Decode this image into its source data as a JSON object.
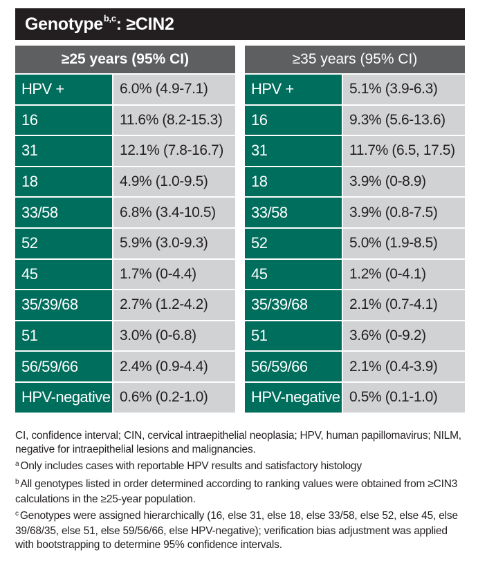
{
  "title": {
    "main": "Genotype",
    "superscript": "b,c",
    "suffix": ": ≥CIN2"
  },
  "columns": [
    {
      "header": "≥25 years (95% CI)",
      "rows": [
        {
          "genotype": "HPV +",
          "value": "6.0% (4.9-7.1)"
        },
        {
          "genotype": "16",
          "value": "11.6% (8.2-15.3)"
        },
        {
          "genotype": "31",
          "value": "12.1% (7.8-16.7)"
        },
        {
          "genotype": "18",
          "value": "4.9% (1.0-9.5)"
        },
        {
          "genotype": "33/58",
          "value": "6.8% (3.4-10.5)"
        },
        {
          "genotype": "52",
          "value": "5.9% (3.0-9.3)"
        },
        {
          "genotype": "45",
          "value": "1.7% (0-4.4)"
        },
        {
          "genotype": "35/39/68",
          "value": "2.7% (1.2-4.2)"
        },
        {
          "genotype": "51",
          "value": "3.0% (0-6.8)"
        },
        {
          "genotype": "56/59/66",
          "value": "2.4% (0.9-4.4)"
        },
        {
          "genotype": "HPV-negative",
          "value": "0.6% (0.2-1.0)"
        }
      ]
    },
    {
      "header": "≥35 years (95% CI)",
      "rows": [
        {
          "genotype": "HPV +",
          "value": "5.1% (3.9-6.3)"
        },
        {
          "genotype": "16",
          "value": "9.3% (5.6-13.6)"
        },
        {
          "genotype": "31",
          "value": "11.7% (6.5, 17.5)"
        },
        {
          "genotype": "18",
          "value": "3.9% (0-8.9)"
        },
        {
          "genotype": "33/58",
          "value": "3.9% (0.8-7.5)"
        },
        {
          "genotype": "52",
          "value": "5.0% (1.9-8.5)"
        },
        {
          "genotype": "45",
          "value": "1.2% (0-4.1)"
        },
        {
          "genotype": "35/39/68",
          "value": "2.1% (0.7-4.1)"
        },
        {
          "genotype": "51",
          "value": "3.6% (0-9.2)"
        },
        {
          "genotype": "56/59/66",
          "value": "2.1% (0.4-3.9)"
        },
        {
          "genotype": "HPV-negative",
          "value": "0.5% (0.1-1.0)"
        }
      ]
    }
  ],
  "footnotes": {
    "abbreviations": "CI, confidence interval; CIN, cervical intraepithelial neoplasia; HPV, human papillomavirus; NILM, negative for intraepithelial lesions and malignancies.",
    "notes": [
      {
        "marker": "a",
        "text": "Only includes cases with reportable HPV results and satisfactory histology"
      },
      {
        "marker": "b",
        "text": "All genotypes listed in order determined according to ranking values were obtained from ≥CIN3 calculations in the ≥25-year population."
      },
      {
        "marker": "c",
        "text": "Genotypes were assigned hierarchically (16, else 31, else 18, else 33/58, else 52, else 45, else 39/68/35, else 51, else 59/56/66, else HPV-negative); verification bias adjustment was applied with bootstrapping to determine 95% confidence intervals."
      }
    ]
  },
  "colors": {
    "title_bg": "#231f20",
    "header_bg": "#5e5f61",
    "genotype_bg": "#006e5d",
    "value_bg": "#d1d2d4"
  }
}
